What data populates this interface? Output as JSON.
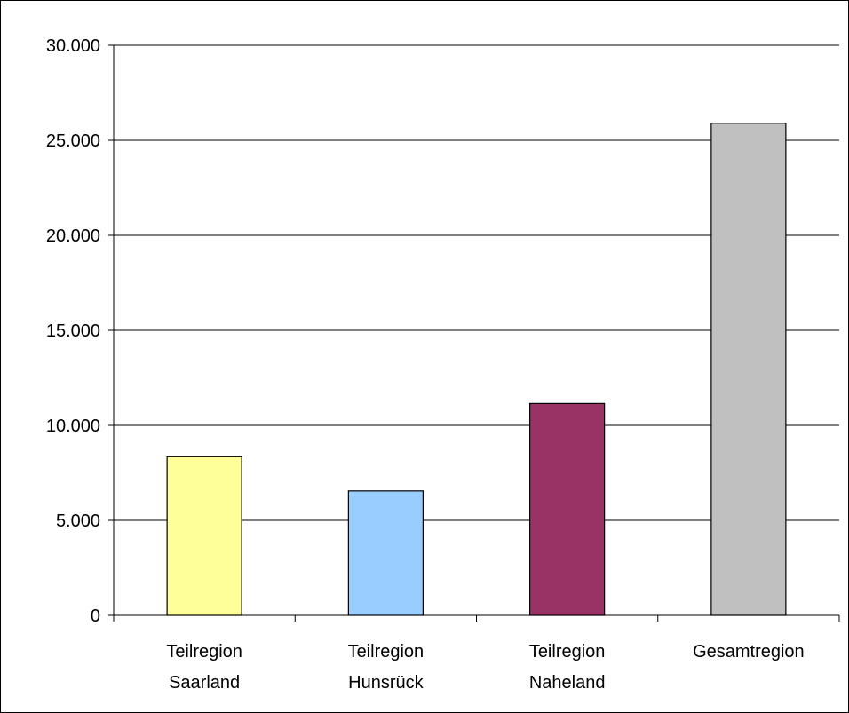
{
  "chart_data": {
    "type": "bar",
    "title": "",
    "xlabel": "",
    "ylabel": "",
    "categories": [
      [
        "Teilregion",
        "Saarland"
      ],
      [
        "Teilregion",
        "Hunsrück"
      ],
      [
        "Teilregion",
        "Naheland"
      ],
      [
        "Gesamtregion"
      ]
    ],
    "values": [
      8350,
      6550,
      11150,
      25900
    ],
    "bar_colors": [
      "#FFFF99",
      "#99CCFF",
      "#993366",
      "#C0C0C0"
    ],
    "ylim": [
      0,
      30000
    ],
    "yticks": [
      0,
      5000,
      10000,
      15000,
      20000,
      25000,
      30000
    ],
    "ytick_labels": [
      "0",
      "5.000",
      "10.000",
      "15.000",
      "20.000",
      "25.000",
      "30.000"
    ],
    "grid": true,
    "legend": "none"
  }
}
